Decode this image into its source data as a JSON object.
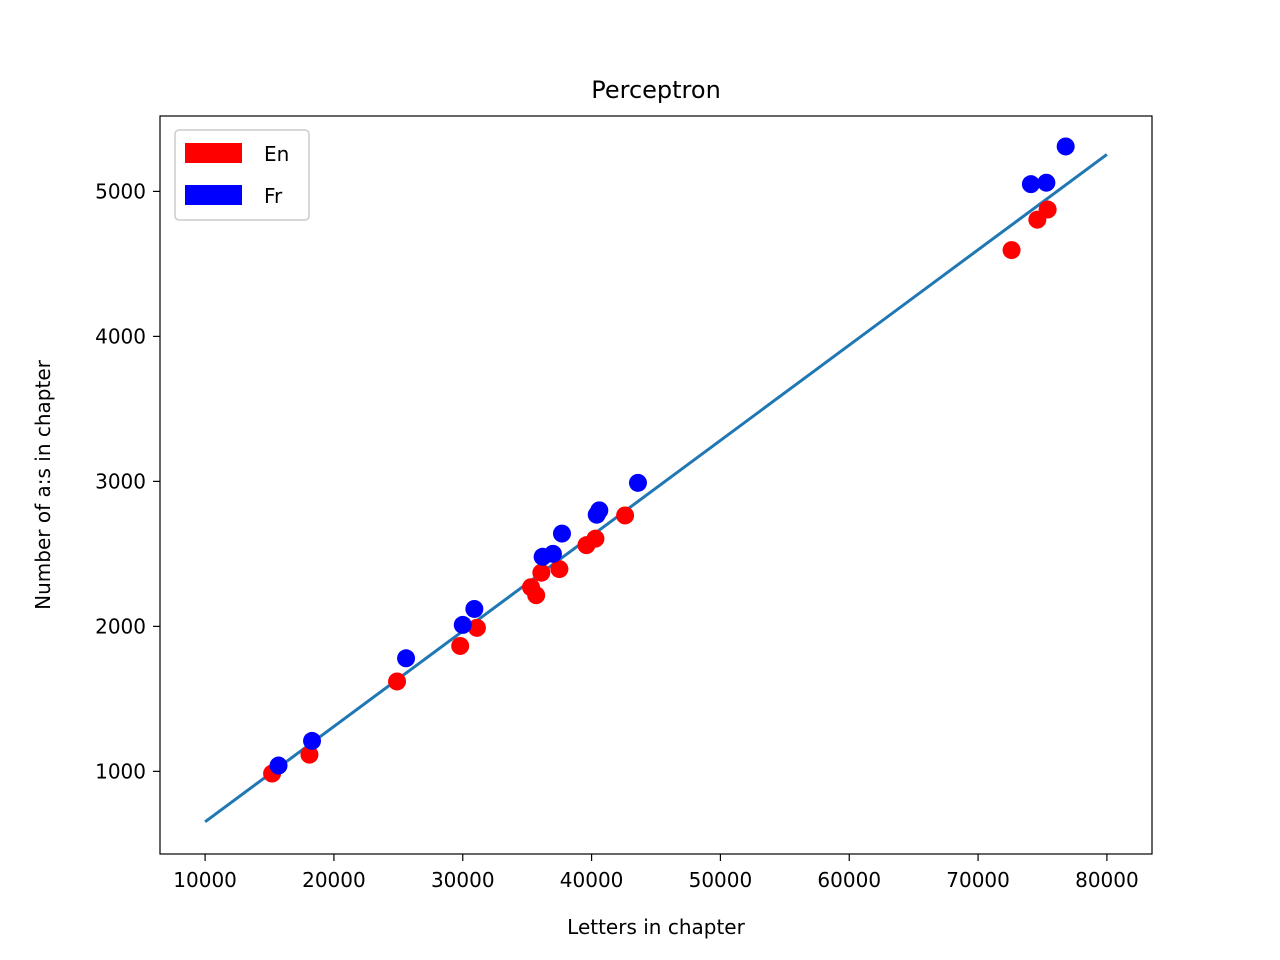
{
  "chart_data": {
    "type": "scatter",
    "title": "Perceptron",
    "xlabel": "Letters in chapter",
    "ylabel": "Number of a:s in chapter",
    "xlim": [
      6500,
      83500
    ],
    "ylim": [
      430,
      5520
    ],
    "xticks": [
      10000,
      20000,
      30000,
      40000,
      50000,
      60000,
      70000,
      80000
    ],
    "yticks": [
      1000,
      2000,
      3000,
      4000,
      5000
    ],
    "grid": false,
    "legend_position": "top-left",
    "series": [
      {
        "name": "En",
        "color": "#ff0000",
        "points": [
          [
            15200,
            985
          ],
          [
            18100,
            1115
          ],
          [
            24900,
            1620
          ],
          [
            29800,
            1865
          ],
          [
            31100,
            1990
          ],
          [
            35300,
            2270
          ],
          [
            35700,
            2215
          ],
          [
            36100,
            2370
          ],
          [
            37500,
            2395
          ],
          [
            39600,
            2560
          ],
          [
            40300,
            2605
          ],
          [
            42600,
            2765
          ],
          [
            72600,
            4595
          ],
          [
            74600,
            4805
          ],
          [
            75400,
            4875
          ]
        ]
      },
      {
        "name": "Fr",
        "color": "#0000ff",
        "points": [
          [
            15700,
            1040
          ],
          [
            18300,
            1210
          ],
          [
            25600,
            1780
          ],
          [
            30000,
            2010
          ],
          [
            30900,
            2120
          ],
          [
            36200,
            2480
          ],
          [
            37000,
            2500
          ],
          [
            37700,
            2640
          ],
          [
            40400,
            2770
          ],
          [
            40600,
            2800
          ],
          [
            43600,
            2990
          ],
          [
            74100,
            5050
          ],
          [
            75300,
            5060
          ],
          [
            76800,
            5310
          ]
        ]
      }
    ],
    "line": {
      "color": "#1f77b4",
      "points": [
        [
          10000,
          652
        ],
        [
          80000,
          5255
        ]
      ]
    }
  }
}
